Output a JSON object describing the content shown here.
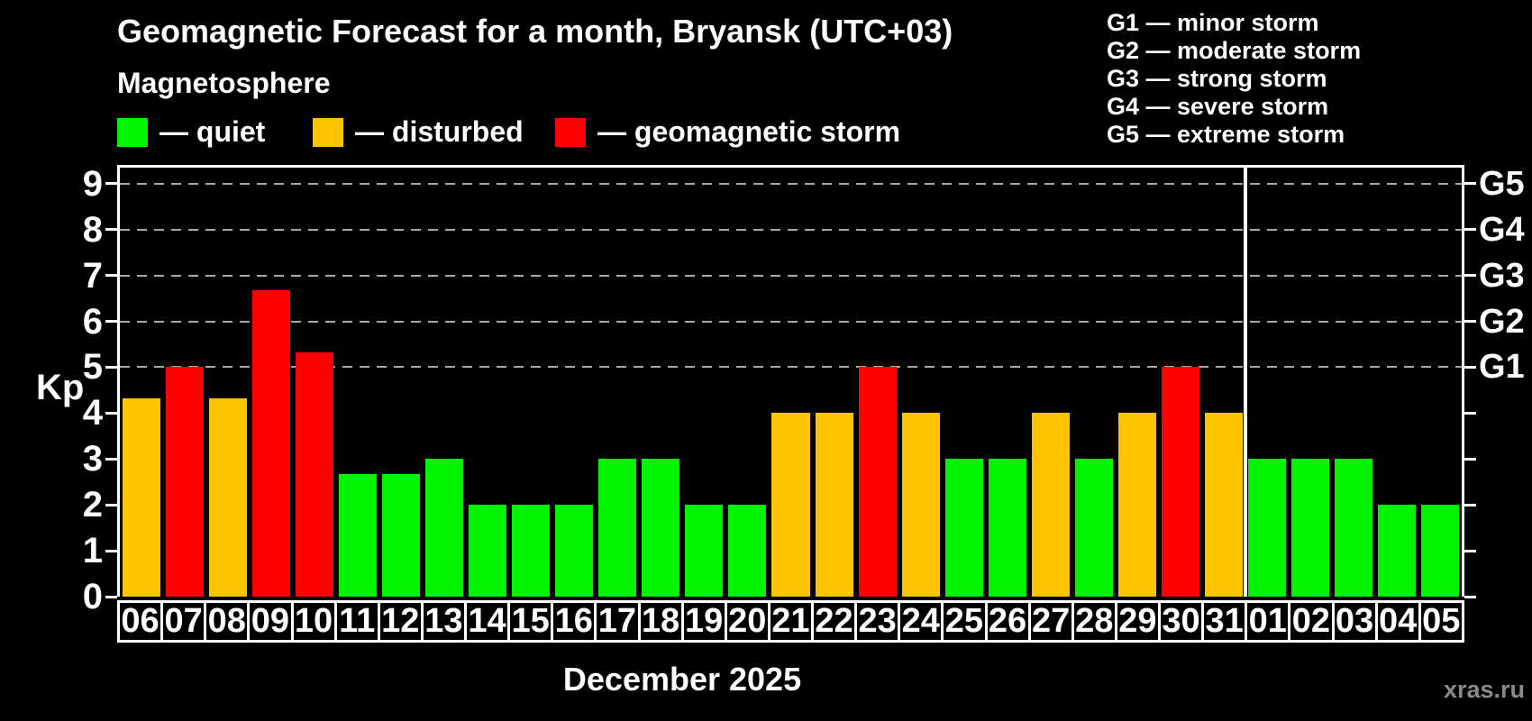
{
  "title": "Geomagnetic Forecast for a month, Bryansk (UTC+03)",
  "subtitle": "Magnetosphere",
  "legend": {
    "items": [
      {
        "name": "quiet",
        "label": "— quiet",
        "color": "#00f400"
      },
      {
        "name": "disturbed",
        "label": "— disturbed",
        "color": "#ffc400"
      },
      {
        "name": "storm",
        "label": "— geomagnetic storm",
        "color": "#ff0000"
      }
    ]
  },
  "g_legend": [
    "G1 — minor storm",
    "G2 — moderate storm",
    "G3 — strong storm",
    "G4 — severe storm",
    "G5 — extreme storm"
  ],
  "watermark": "xras.ru",
  "chart_data": {
    "type": "bar",
    "title": "Geomagnetic Forecast for a month, Bryansk (UTC+03)",
    "subtitle": "Magnetosphere",
    "ylabel": "Kp",
    "xlabel": "December 2025",
    "ylim": [
      0,
      9
    ],
    "axis_max": 9.35,
    "grid": "dashed horizontal at Kp 5-9 only",
    "grid_color": "#a8a8a8",
    "yticks": [
      0,
      1,
      2,
      3,
      4,
      5,
      6,
      7,
      8,
      9
    ],
    "grid_levels": [
      5,
      6,
      7,
      8,
      9
    ],
    "right_axis_labels": {
      "5": "G1",
      "6": "G2",
      "7": "G3",
      "8": "G4",
      "9": "G5"
    },
    "categories": [
      "06",
      "07",
      "08",
      "09",
      "10",
      "11",
      "12",
      "13",
      "14",
      "15",
      "16",
      "17",
      "18",
      "19",
      "20",
      "21",
      "22",
      "23",
      "24",
      "25",
      "26",
      "27",
      "28",
      "29",
      "30",
      "31",
      "01",
      "02",
      "03",
      "04",
      "05"
    ],
    "values": [
      4.33,
      5,
      4.33,
      6.67,
      5.33,
      2.67,
      2.67,
      3,
      2,
      2,
      2,
      3,
      3,
      2,
      2,
      4,
      4,
      5,
      4,
      3,
      3,
      4,
      3,
      4,
      5,
      4,
      3,
      3,
      3,
      2,
      2
    ],
    "statuses": [
      "disturbed",
      "storm",
      "disturbed",
      "storm",
      "storm",
      "quiet",
      "quiet",
      "quiet",
      "quiet",
      "quiet",
      "quiet",
      "quiet",
      "quiet",
      "quiet",
      "quiet",
      "disturbed",
      "disturbed",
      "storm",
      "disturbed",
      "quiet",
      "quiet",
      "disturbed",
      "quiet",
      "disturbed",
      "storm",
      "disturbed",
      "quiet",
      "quiet",
      "quiet",
      "quiet",
      "quiet"
    ],
    "colors": {
      "quiet": "#00f400",
      "disturbed": "#ffc400",
      "storm": "#ff0000"
    },
    "december_slots": 26,
    "legend_position": "top-left",
    "month_divider_between": [
      "31",
      "01"
    ]
  }
}
